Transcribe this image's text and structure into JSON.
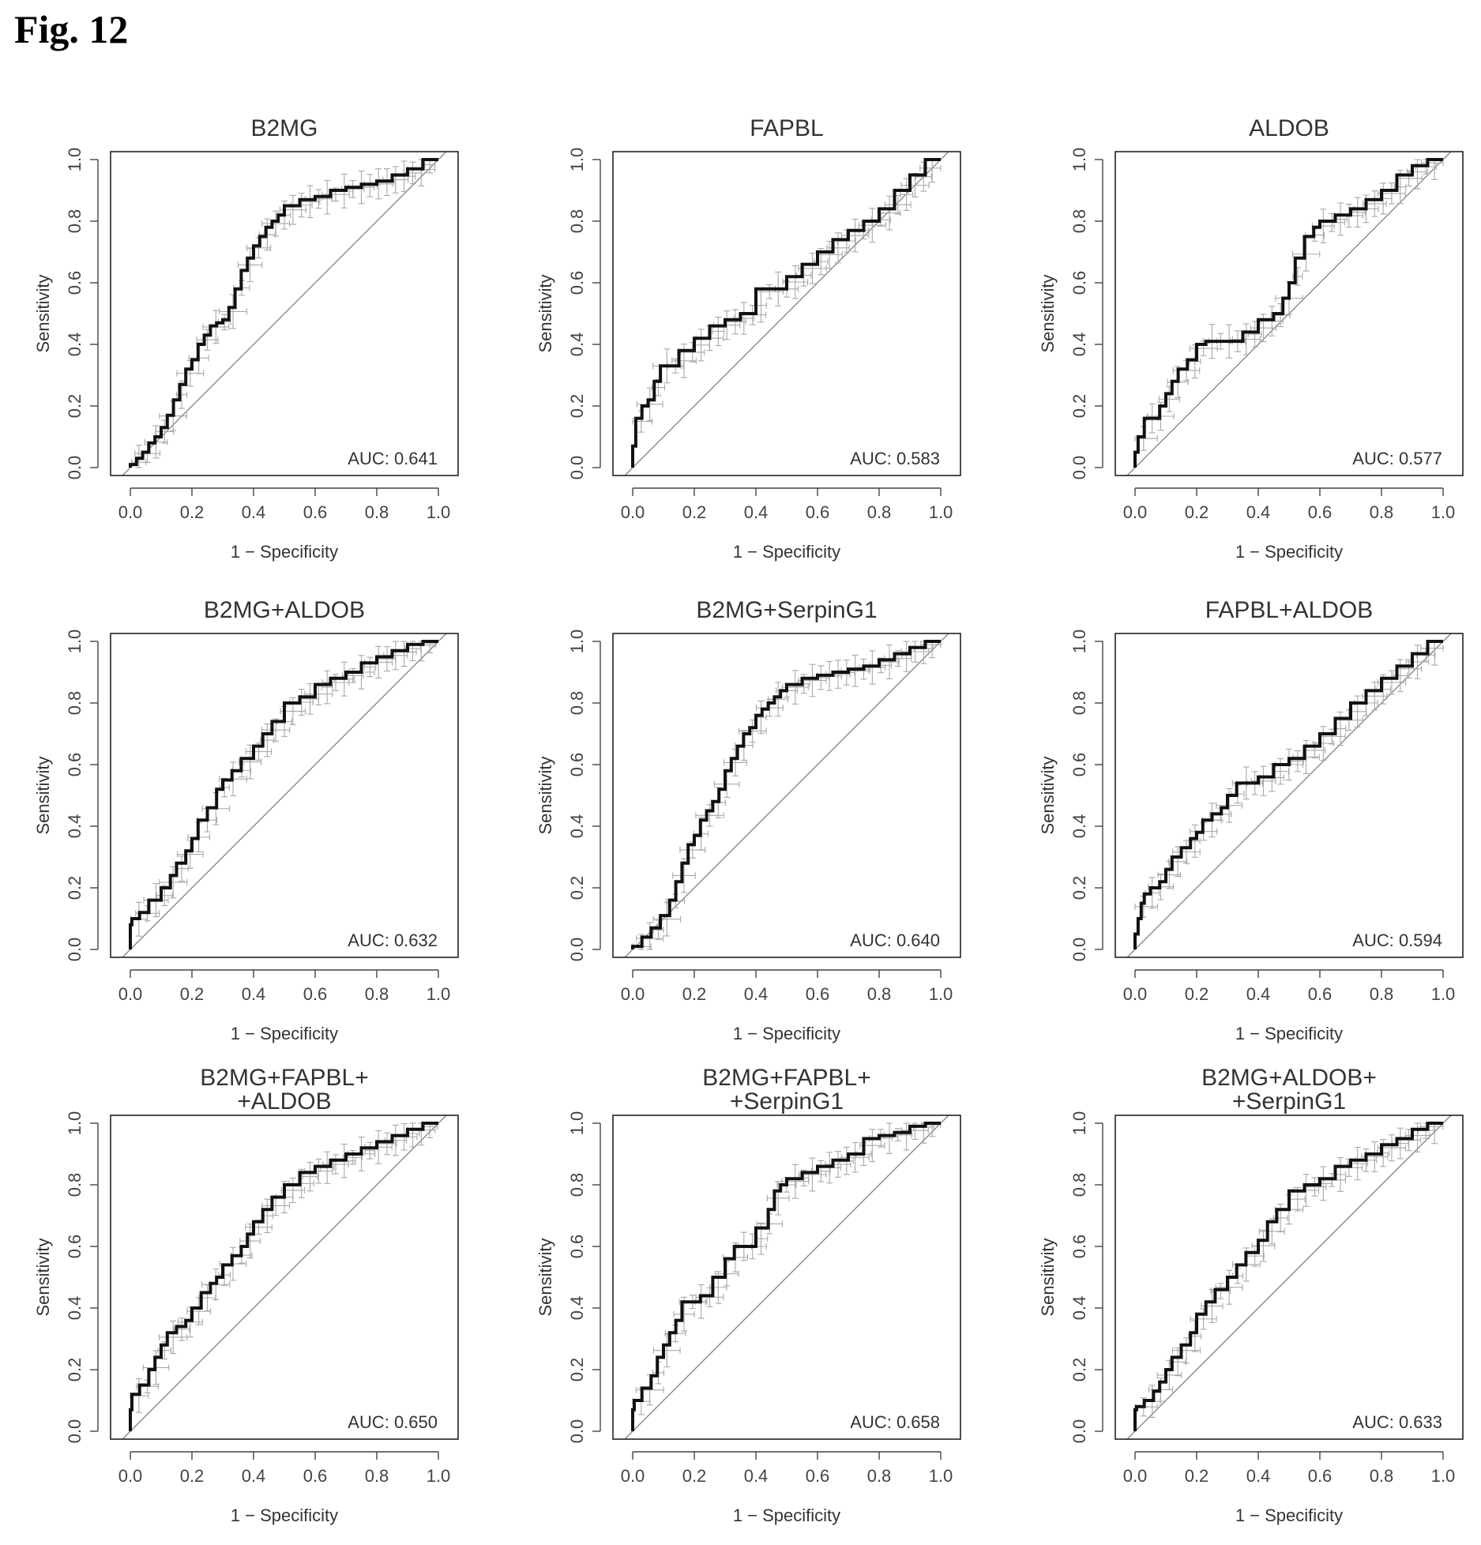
{
  "figure_label": "Fig. 12",
  "chart_data": [
    {
      "type": "line",
      "title_lines": [
        "B2MG"
      ],
      "xlabel": "1 − Specificity",
      "ylabel": "Sensitivity",
      "xlim": [
        0,
        1
      ],
      "ylim": [
        0,
        1
      ],
      "xticks": [
        "0.0",
        "0.2",
        "0.4",
        "0.6",
        "0.8",
        "1.0"
      ],
      "yticks": [
        "0.0",
        "0.2",
        "0.4",
        "0.6",
        "0.8",
        "1.0"
      ],
      "auc_label": "AUC: 0.641",
      "roc": {
        "x": [
          0,
          0.02,
          0.04,
          0.06,
          0.08,
          0.1,
          0.12,
          0.14,
          0.16,
          0.18,
          0.2,
          0.22,
          0.24,
          0.26,
          0.28,
          0.3,
          0.32,
          0.34,
          0.36,
          0.38,
          0.4,
          0.42,
          0.44,
          0.46,
          0.48,
          0.5,
          0.55,
          0.6,
          0.65,
          0.7,
          0.75,
          0.8,
          0.85,
          0.9,
          0.95,
          1.0
        ],
        "y": [
          0,
          0.01,
          0.03,
          0.05,
          0.08,
          0.1,
          0.13,
          0.17,
          0.22,
          0.27,
          0.32,
          0.35,
          0.4,
          0.43,
          0.46,
          0.47,
          0.48,
          0.52,
          0.58,
          0.64,
          0.68,
          0.72,
          0.75,
          0.78,
          0.8,
          0.82,
          0.85,
          0.87,
          0.88,
          0.9,
          0.91,
          0.92,
          0.93,
          0.95,
          0.97,
          1.0
        ]
      }
    },
    {
      "type": "line",
      "title_lines": [
        "FAPBL"
      ],
      "xlabel": "1 − Specificity",
      "ylabel": "Sensitivity",
      "xlim": [
        0,
        1
      ],
      "ylim": [
        0,
        1
      ],
      "xticks": [
        "0.0",
        "0.2",
        "0.4",
        "0.6",
        "0.8",
        "1.0"
      ],
      "yticks": [
        "0.0",
        "0.2",
        "0.4",
        "0.6",
        "0.8",
        "1.0"
      ],
      "auc_label": "AUC: 0.583",
      "roc": {
        "x": [
          0,
          0.01,
          0.03,
          0.05,
          0.07,
          0.09,
          0.11,
          0.15,
          0.2,
          0.25,
          0.3,
          0.35,
          0.4,
          0.45,
          0.5,
          0.55,
          0.6,
          0.65,
          0.7,
          0.75,
          0.8,
          0.85,
          0.9,
          0.95,
          1.0
        ],
        "y": [
          0,
          0.07,
          0.16,
          0.2,
          0.22,
          0.28,
          0.33,
          0.33,
          0.38,
          0.42,
          0.46,
          0.48,
          0.5,
          0.58,
          0.58,
          0.62,
          0.66,
          0.7,
          0.74,
          0.77,
          0.8,
          0.84,
          0.9,
          0.95,
          1.0
        ]
      }
    },
    {
      "type": "line",
      "title_lines": [
        "ALDOB"
      ],
      "xlabel": "1 − Specificity",
      "ylabel": "Sensitivity",
      "xlim": [
        0,
        1
      ],
      "ylim": [
        0,
        1
      ],
      "xticks": [
        "0.0",
        "0.2",
        "0.4",
        "0.6",
        "0.8",
        "1.0"
      ],
      "yticks": [
        "0.0",
        "0.2",
        "0.4",
        "0.6",
        "0.8",
        "1.0"
      ],
      "auc_label": "AUC: 0.577",
      "roc": {
        "x": [
          0,
          0.01,
          0.03,
          0.05,
          0.08,
          0.1,
          0.12,
          0.14,
          0.17,
          0.2,
          0.23,
          0.25,
          0.3,
          0.35,
          0.4,
          0.45,
          0.48,
          0.5,
          0.52,
          0.55,
          0.58,
          0.6,
          0.65,
          0.7,
          0.75,
          0.8,
          0.85,
          0.9,
          0.95,
          1.0
        ],
        "y": [
          0,
          0.05,
          0.1,
          0.16,
          0.16,
          0.2,
          0.24,
          0.28,
          0.32,
          0.35,
          0.4,
          0.41,
          0.41,
          0.41,
          0.44,
          0.48,
          0.5,
          0.55,
          0.6,
          0.68,
          0.75,
          0.78,
          0.8,
          0.82,
          0.84,
          0.87,
          0.9,
          0.95,
          0.98,
          1.0
        ]
      }
    },
    {
      "type": "line",
      "title_lines": [
        "B2MG+ALDOB"
      ],
      "xlabel": "1 − Specificity",
      "ylabel": "Sensitivity",
      "xlim": [
        0,
        1
      ],
      "ylim": [
        0,
        1
      ],
      "xticks": [
        "0.0",
        "0.2",
        "0.4",
        "0.6",
        "0.8",
        "1.0"
      ],
      "yticks": [
        "0.0",
        "0.2",
        "0.4",
        "0.6",
        "0.8",
        "1.0"
      ],
      "auc_label": "AUC: 0.632",
      "roc": {
        "x": [
          0,
          0.005,
          0.03,
          0.06,
          0.08,
          0.1,
          0.13,
          0.15,
          0.18,
          0.2,
          0.22,
          0.25,
          0.28,
          0.3,
          0.33,
          0.36,
          0.4,
          0.43,
          0.46,
          0.5,
          0.55,
          0.6,
          0.65,
          0.7,
          0.75,
          0.8,
          0.85,
          0.9,
          0.95,
          1.0
        ],
        "y": [
          0,
          0.08,
          0.1,
          0.12,
          0.16,
          0.16,
          0.2,
          0.24,
          0.28,
          0.32,
          0.36,
          0.42,
          0.46,
          0.52,
          0.55,
          0.58,
          0.62,
          0.66,
          0.7,
          0.74,
          0.8,
          0.82,
          0.86,
          0.88,
          0.9,
          0.93,
          0.95,
          0.97,
          0.99,
          1.0
        ]
      }
    },
    {
      "type": "line",
      "title_lines": [
        "B2MG+SerpinG1"
      ],
      "xlabel": "1 − Specificity",
      "ylabel": "Sensitivity",
      "xlim": [
        0,
        1
      ],
      "ylim": [
        0,
        1
      ],
      "xticks": [
        "0.0",
        "0.2",
        "0.4",
        "0.6",
        "0.8",
        "1.0"
      ],
      "yticks": [
        "0.0",
        "0.2",
        "0.4",
        "0.6",
        "0.8",
        "1.0"
      ],
      "auc_label": "AUC: 0.640",
      "roc": {
        "x": [
          0,
          0.03,
          0.06,
          0.09,
          0.12,
          0.14,
          0.16,
          0.18,
          0.2,
          0.22,
          0.24,
          0.26,
          0.28,
          0.3,
          0.32,
          0.34,
          0.36,
          0.38,
          0.4,
          0.42,
          0.44,
          0.46,
          0.48,
          0.5,
          0.55,
          0.6,
          0.65,
          0.7,
          0.75,
          0.8,
          0.85,
          0.9,
          0.95,
          1.0
        ],
        "y": [
          0,
          0.01,
          0.04,
          0.07,
          0.11,
          0.16,
          0.22,
          0.28,
          0.34,
          0.37,
          0.42,
          0.45,
          0.48,
          0.52,
          0.58,
          0.62,
          0.66,
          0.7,
          0.72,
          0.76,
          0.78,
          0.8,
          0.82,
          0.84,
          0.86,
          0.88,
          0.89,
          0.9,
          0.91,
          0.92,
          0.94,
          0.96,
          0.98,
          1.0
        ]
      }
    },
    {
      "type": "line",
      "title_lines": [
        "FAPBL+ALDOB"
      ],
      "xlabel": "1 − Specificity",
      "ylabel": "Sensitivity",
      "xlim": [
        0,
        1
      ],
      "ylim": [
        0,
        1
      ],
      "xticks": [
        "0.0",
        "0.2",
        "0.4",
        "0.6",
        "0.8",
        "1.0"
      ],
      "yticks": [
        "0.0",
        "0.2",
        "0.4",
        "0.6",
        "0.8",
        "1.0"
      ],
      "auc_label": "AUC: 0.594",
      "roc": {
        "x": [
          0,
          0.01,
          0.02,
          0.03,
          0.05,
          0.08,
          0.1,
          0.12,
          0.15,
          0.18,
          0.2,
          0.22,
          0.25,
          0.28,
          0.3,
          0.33,
          0.36,
          0.4,
          0.45,
          0.5,
          0.55,
          0.6,
          0.65,
          0.7,
          0.75,
          0.8,
          0.85,
          0.9,
          0.95,
          1.0
        ],
        "y": [
          0,
          0.05,
          0.1,
          0.15,
          0.18,
          0.2,
          0.22,
          0.26,
          0.3,
          0.33,
          0.36,
          0.38,
          0.42,
          0.44,
          0.46,
          0.5,
          0.54,
          0.54,
          0.56,
          0.6,
          0.62,
          0.66,
          0.7,
          0.75,
          0.8,
          0.84,
          0.88,
          0.92,
          0.96,
          1.0
        ]
      }
    },
    {
      "type": "line",
      "title_lines": [
        "B2MG+FAPBL+",
        "+ALDOB"
      ],
      "xlabel": "1 − Specificity",
      "ylabel": "Sensitivity",
      "xlim": [
        0,
        1
      ],
      "ylim": [
        0,
        1
      ],
      "xticks": [
        "0.0",
        "0.2",
        "0.4",
        "0.6",
        "0.8",
        "1.0"
      ],
      "yticks": [
        "0.0",
        "0.2",
        "0.4",
        "0.6",
        "0.8",
        "1.0"
      ],
      "auc_label": "AUC: 0.650",
      "roc": {
        "x": [
          0,
          0.005,
          0.03,
          0.06,
          0.08,
          0.1,
          0.12,
          0.15,
          0.18,
          0.2,
          0.23,
          0.26,
          0.28,
          0.3,
          0.33,
          0.36,
          0.38,
          0.4,
          0.43,
          0.46,
          0.5,
          0.55,
          0.6,
          0.65,
          0.7,
          0.75,
          0.8,
          0.85,
          0.9,
          0.95,
          1.0
        ],
        "y": [
          0,
          0.07,
          0.12,
          0.15,
          0.2,
          0.24,
          0.28,
          0.32,
          0.34,
          0.36,
          0.4,
          0.45,
          0.48,
          0.5,
          0.54,
          0.57,
          0.6,
          0.64,
          0.68,
          0.72,
          0.76,
          0.8,
          0.84,
          0.86,
          0.88,
          0.9,
          0.92,
          0.94,
          0.96,
          0.98,
          1.0
        ]
      }
    },
    {
      "type": "line",
      "title_lines": [
        "B2MG+FAPBL+",
        "+SerpinG1"
      ],
      "xlabel": "1 − Specificity",
      "ylabel": "Sensitivity",
      "xlim": [
        0,
        1
      ],
      "ylim": [
        0,
        1
      ],
      "xticks": [
        "0.0",
        "0.2",
        "0.4",
        "0.6",
        "0.8",
        "1.0"
      ],
      "yticks": [
        "0.0",
        "0.2",
        "0.4",
        "0.6",
        "0.8",
        "1.0"
      ],
      "auc_label": "AUC: 0.658",
      "roc": {
        "x": [
          0,
          0.005,
          0.03,
          0.06,
          0.08,
          0.1,
          0.12,
          0.14,
          0.16,
          0.18,
          0.22,
          0.26,
          0.3,
          0.33,
          0.36,
          0.4,
          0.44,
          0.46,
          0.48,
          0.5,
          0.55,
          0.6,
          0.65,
          0.7,
          0.75,
          0.8,
          0.85,
          0.9,
          0.95,
          1.0
        ],
        "y": [
          0,
          0.07,
          0.1,
          0.14,
          0.18,
          0.24,
          0.28,
          0.32,
          0.36,
          0.42,
          0.42,
          0.44,
          0.5,
          0.56,
          0.6,
          0.6,
          0.66,
          0.72,
          0.78,
          0.8,
          0.82,
          0.84,
          0.86,
          0.88,
          0.9,
          0.95,
          0.96,
          0.97,
          0.99,
          1.0
        ]
      }
    },
    {
      "type": "line",
      "title_lines": [
        "B2MG+ALDOB+",
        "+SerpinG1"
      ],
      "xlabel": "1 − Specificity",
      "ylabel": "Sensitivity",
      "xlim": [
        0,
        1
      ],
      "ylim": [
        0,
        1
      ],
      "xticks": [
        "0.0",
        "0.2",
        "0.4",
        "0.6",
        "0.8",
        "1.0"
      ],
      "yticks": [
        "0.0",
        "0.2",
        "0.4",
        "0.6",
        "0.8",
        "1.0"
      ],
      "auc_label": "AUC: 0.633",
      "roc": {
        "x": [
          0,
          0.005,
          0.03,
          0.06,
          0.08,
          0.1,
          0.12,
          0.15,
          0.18,
          0.2,
          0.23,
          0.26,
          0.28,
          0.3,
          0.33,
          0.36,
          0.4,
          0.43,
          0.46,
          0.5,
          0.55,
          0.6,
          0.65,
          0.7,
          0.75,
          0.8,
          0.85,
          0.9,
          0.95,
          1.0
        ],
        "y": [
          0,
          0.07,
          0.08,
          0.1,
          0.13,
          0.16,
          0.2,
          0.24,
          0.28,
          0.32,
          0.38,
          0.42,
          0.46,
          0.46,
          0.5,
          0.54,
          0.58,
          0.62,
          0.68,
          0.72,
          0.78,
          0.8,
          0.82,
          0.86,
          0.88,
          0.9,
          0.93,
          0.95,
          0.98,
          1.0
        ]
      }
    }
  ]
}
